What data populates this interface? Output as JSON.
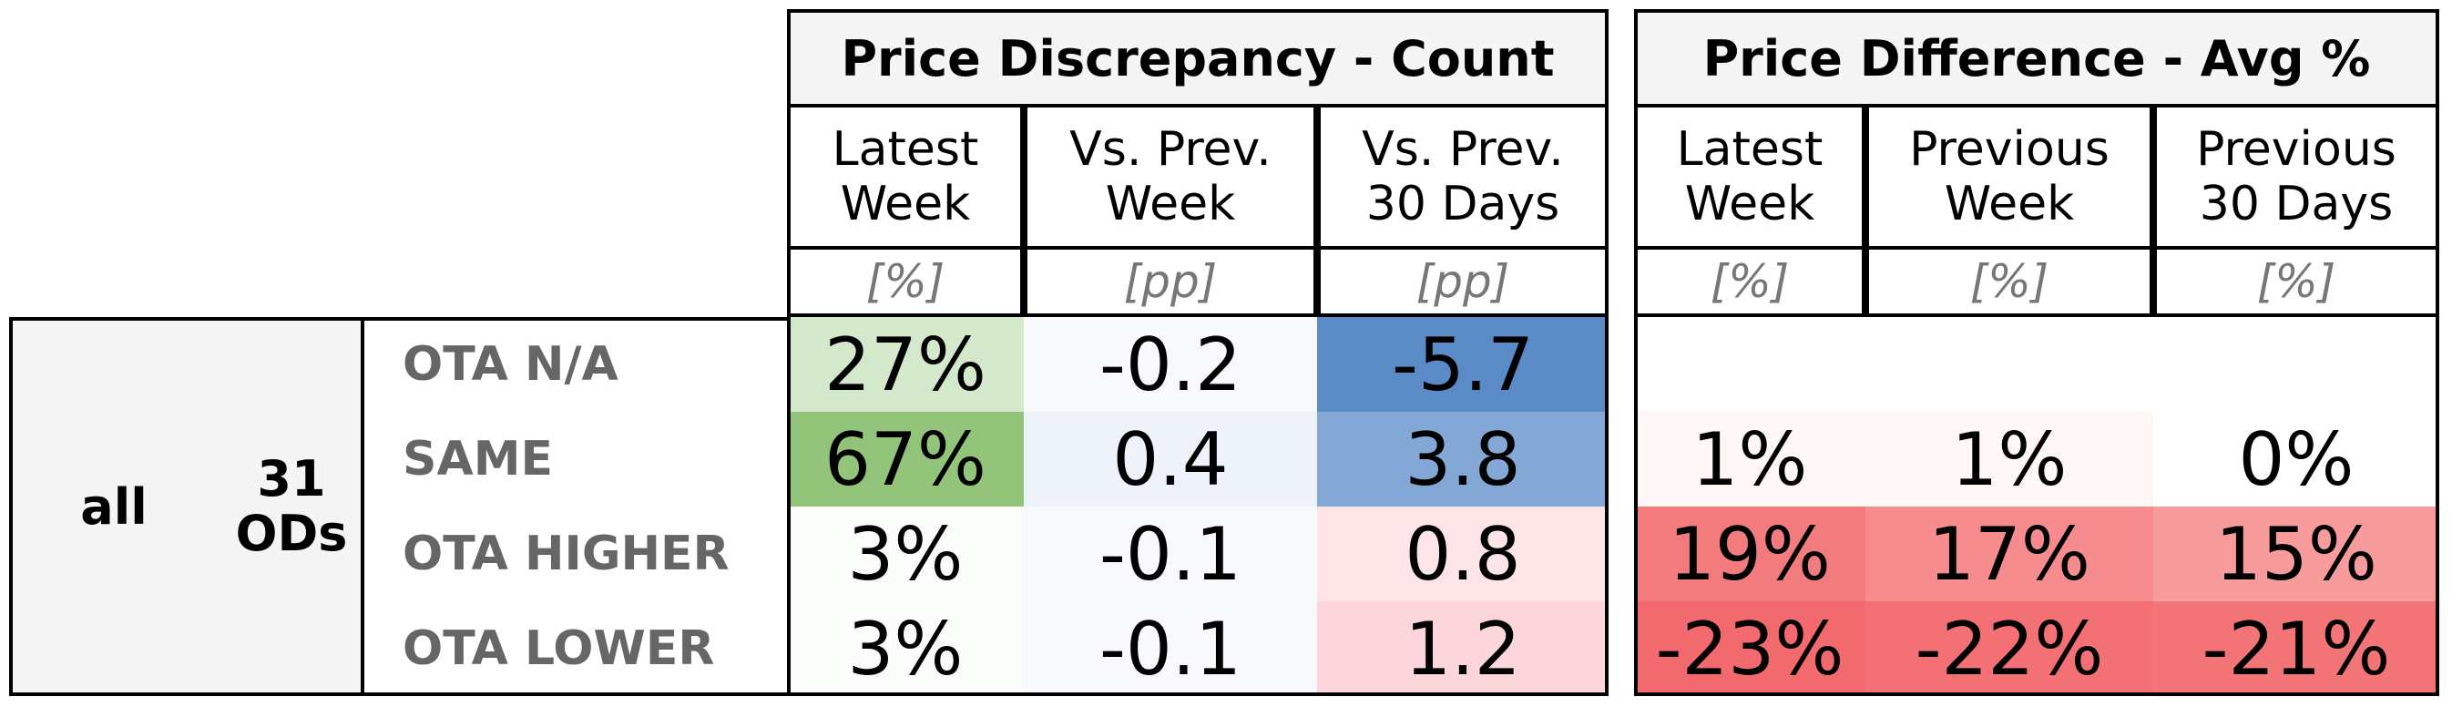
{
  "chart_data": {
    "type": "table",
    "groups": [
      {
        "title": "Price Discrepancy - Count",
        "columns": [
          {
            "header": "Latest\nWeek",
            "unit": "[%]"
          },
          {
            "header": "Vs. Prev.\nWeek",
            "unit": "[pp]"
          },
          {
            "header": "Vs. Prev.\n30 Days",
            "unit": "[pp]"
          }
        ]
      },
      {
        "title": "Price Difference - Avg %",
        "columns": [
          {
            "header": "Latest\nWeek",
            "unit": "[%]"
          },
          {
            "header": "Previous\nWeek",
            "unit": "[%]"
          },
          {
            "header": "Previous\n30 Days",
            "unit": "[%]"
          }
        ]
      }
    ],
    "segment": {
      "label": "all",
      "ods": "31\nODs"
    },
    "rows": [
      {
        "label": "OTA N/A",
        "values": [
          "27%",
          "-0.2",
          "-5.7",
          "",
          "",
          ""
        ],
        "colors": [
          "#d4e8cc",
          "#f7f9fc",
          "#5b8bc6",
          "#ffffff",
          "#ffffff",
          "#ffffff"
        ]
      },
      {
        "label": "SAME",
        "values": [
          "67%",
          "0.4",
          "3.8",
          "1%",
          "1%",
          "0%"
        ],
        "colors": [
          "#92c57a",
          "#eef3f9",
          "#84a8d6",
          "#fff6f6",
          "#fff6f6",
          "#ffffff"
        ]
      },
      {
        "label": "OTA HIGHER",
        "values": [
          "3%",
          "-0.1",
          "0.8",
          "19%",
          "17%",
          "15%"
        ],
        "colors": [
          "#f9fcf8",
          "#f7f9fc",
          "#fde4e6",
          "#f27b7e",
          "#f68c8e",
          "#f89b9d"
        ]
      },
      {
        "label": "OTA LOWER",
        "values": [
          "3%",
          "-0.1",
          "1.2",
          "-23%",
          "-22%",
          "-21%"
        ],
        "colors": [
          "#f9fcf8",
          "#f7f9fc",
          "#fcd6da",
          "#f26a6e",
          "#f37074",
          "#f47578"
        ]
      }
    ]
  }
}
